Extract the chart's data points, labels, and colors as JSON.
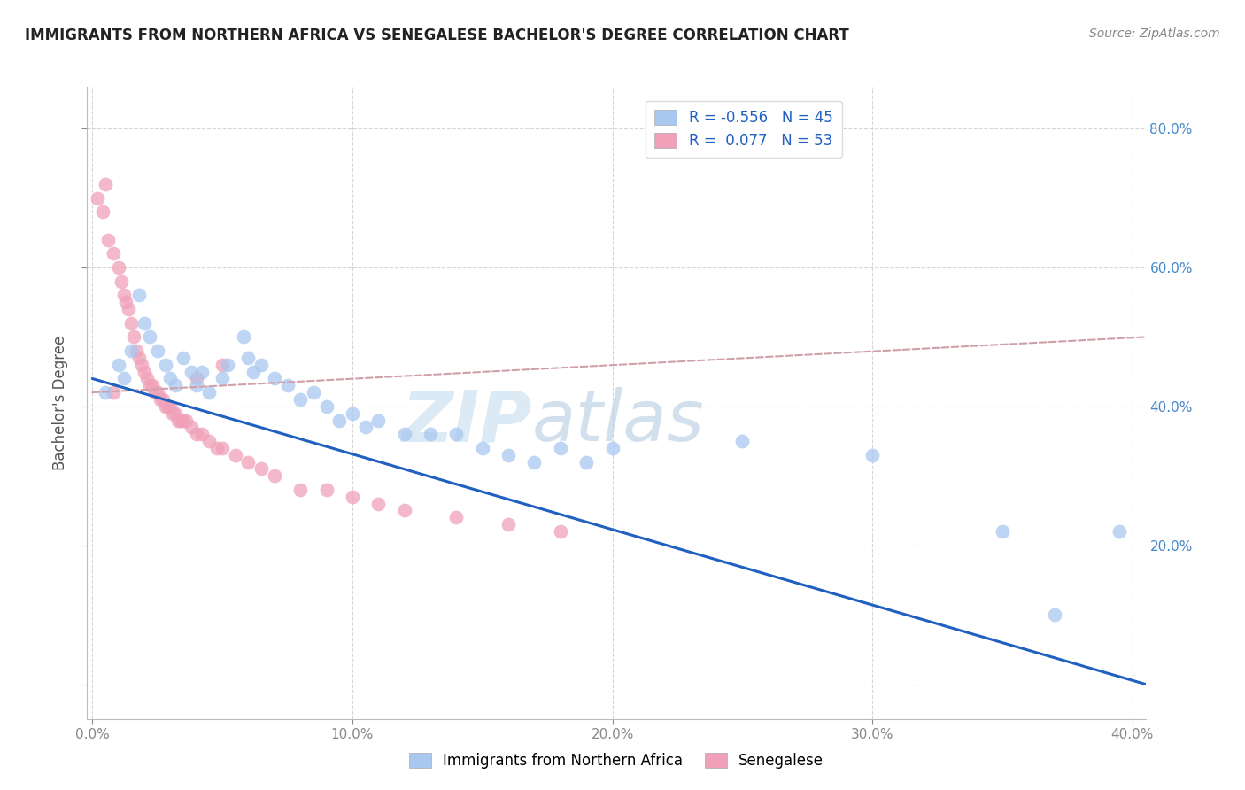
{
  "title": "IMMIGRANTS FROM NORTHERN AFRICA VS SENEGALESE BACHELOR'S DEGREE CORRELATION CHART",
  "source": "Source: ZipAtlas.com",
  "ylabel": "Bachelor's Degree",
  "background_color": "#ffffff",
  "grid_color": "#cccccc",
  "watermark_zip": "ZIP",
  "watermark_atlas": "atlas",
  "blue_R": -0.556,
  "blue_N": 45,
  "pink_R": 0.077,
  "pink_N": 53,
  "blue_color": "#a8c8f0",
  "pink_color": "#f0a0b8",
  "blue_line_color": "#2060c0",
  "pink_line_color": "#e07090",
  "dashed_line_color": "#d0a0a8",
  "right_tick_color": "#4488cc",
  "grid_dash": "--",
  "x_min": -0.002,
  "x_max": 0.405,
  "y_min": -0.05,
  "y_max": 0.86,
  "x_ticks": [
    0.0,
    0.1,
    0.2,
    0.3,
    0.4
  ],
  "y_ticks": [
    0.0,
    0.2,
    0.4,
    0.6,
    0.8
  ],
  "blue_points_x": [
    0.005,
    0.01,
    0.012,
    0.015,
    0.018,
    0.02,
    0.022,
    0.025,
    0.028,
    0.03,
    0.032,
    0.035,
    0.038,
    0.04,
    0.042,
    0.045,
    0.05,
    0.052,
    0.058,
    0.06,
    0.062,
    0.065,
    0.07,
    0.075,
    0.08,
    0.085,
    0.09,
    0.095,
    0.1,
    0.105,
    0.11,
    0.12,
    0.13,
    0.14,
    0.15,
    0.16,
    0.17,
    0.18,
    0.19,
    0.2,
    0.25,
    0.3,
    0.35,
    0.37,
    0.395
  ],
  "blue_points_y": [
    0.42,
    0.46,
    0.44,
    0.48,
    0.56,
    0.52,
    0.5,
    0.48,
    0.46,
    0.44,
    0.43,
    0.47,
    0.45,
    0.43,
    0.45,
    0.42,
    0.44,
    0.46,
    0.5,
    0.47,
    0.45,
    0.46,
    0.44,
    0.43,
    0.41,
    0.42,
    0.4,
    0.38,
    0.39,
    0.37,
    0.38,
    0.36,
    0.36,
    0.36,
    0.34,
    0.33,
    0.32,
    0.34,
    0.32,
    0.34,
    0.35,
    0.33,
    0.22,
    0.1,
    0.22
  ],
  "pink_points_x": [
    0.002,
    0.004,
    0.005,
    0.006,
    0.008,
    0.01,
    0.011,
    0.012,
    0.013,
    0.014,
    0.015,
    0.016,
    0.017,
    0.018,
    0.019,
    0.02,
    0.021,
    0.022,
    0.023,
    0.024,
    0.025,
    0.026,
    0.027,
    0.028,
    0.029,
    0.03,
    0.031,
    0.032,
    0.033,
    0.034,
    0.035,
    0.036,
    0.038,
    0.04,
    0.042,
    0.045,
    0.048,
    0.05,
    0.055,
    0.06,
    0.065,
    0.07,
    0.08,
    0.09,
    0.1,
    0.11,
    0.12,
    0.14,
    0.16,
    0.18,
    0.04,
    0.05,
    0.008
  ],
  "pink_points_y": [
    0.7,
    0.68,
    0.72,
    0.64,
    0.62,
    0.6,
    0.58,
    0.56,
    0.55,
    0.54,
    0.52,
    0.5,
    0.48,
    0.47,
    0.46,
    0.45,
    0.44,
    0.43,
    0.43,
    0.42,
    0.42,
    0.41,
    0.41,
    0.4,
    0.4,
    0.4,
    0.39,
    0.39,
    0.38,
    0.38,
    0.38,
    0.38,
    0.37,
    0.36,
    0.36,
    0.35,
    0.34,
    0.34,
    0.33,
    0.32,
    0.31,
    0.3,
    0.28,
    0.28,
    0.27,
    0.26,
    0.25,
    0.24,
    0.23,
    0.22,
    0.44,
    0.46,
    0.42
  ],
  "blue_line_x0": 0.0,
  "blue_line_y0": 0.44,
  "blue_line_x1": 0.405,
  "blue_line_y1": 0.0,
  "pink_line_x0": 0.0,
  "pink_line_y0": 0.42,
  "pink_line_x1": 0.405,
  "pink_line_y1": 0.5
}
